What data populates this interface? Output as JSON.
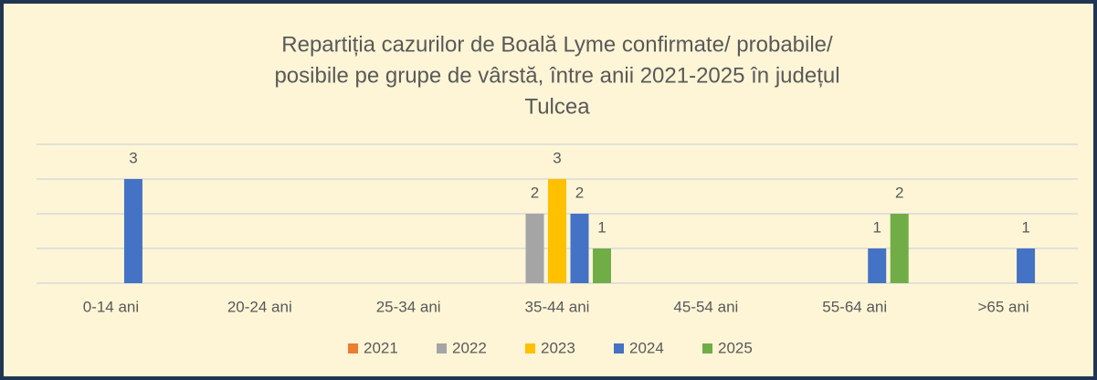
{
  "chart_data": {
    "type": "bar",
    "title": [
      "Repartiția cazurilor de Boală Lyme confirmate/ probabile/",
      "posibile pe grupe de vârstă, între anii 2021-2025 în județul",
      "Tulcea"
    ],
    "categories": [
      "0-14 ani",
      "20-24 ani",
      "25-34 ani",
      "35-44 ani",
      "45-54 ani",
      "55-64 ani",
      ">65 ani"
    ],
    "series": [
      {
        "name": "2021",
        "color": "#ed7d31",
        "values": [
          0,
          0,
          0,
          0,
          0,
          0,
          0
        ]
      },
      {
        "name": "2022",
        "color": "#a5a5a5",
        "values": [
          0,
          0,
          0,
          2,
          0,
          0,
          0
        ]
      },
      {
        "name": "2023",
        "color": "#ffc000",
        "values": [
          0,
          0,
          0,
          3,
          0,
          0,
          0
        ]
      },
      {
        "name": "2024",
        "color": "#4472c4",
        "values": [
          3,
          0,
          0,
          2,
          0,
          1,
          1
        ]
      },
      {
        "name": "2025",
        "color": "#70ad47",
        "values": [
          0,
          0,
          0,
          1,
          0,
          2,
          0
        ]
      }
    ],
    "ylim": [
      0,
      4
    ],
    "yticks": [
      0,
      1,
      2,
      3,
      4
    ],
    "grid": true,
    "legend": "bottom"
  }
}
